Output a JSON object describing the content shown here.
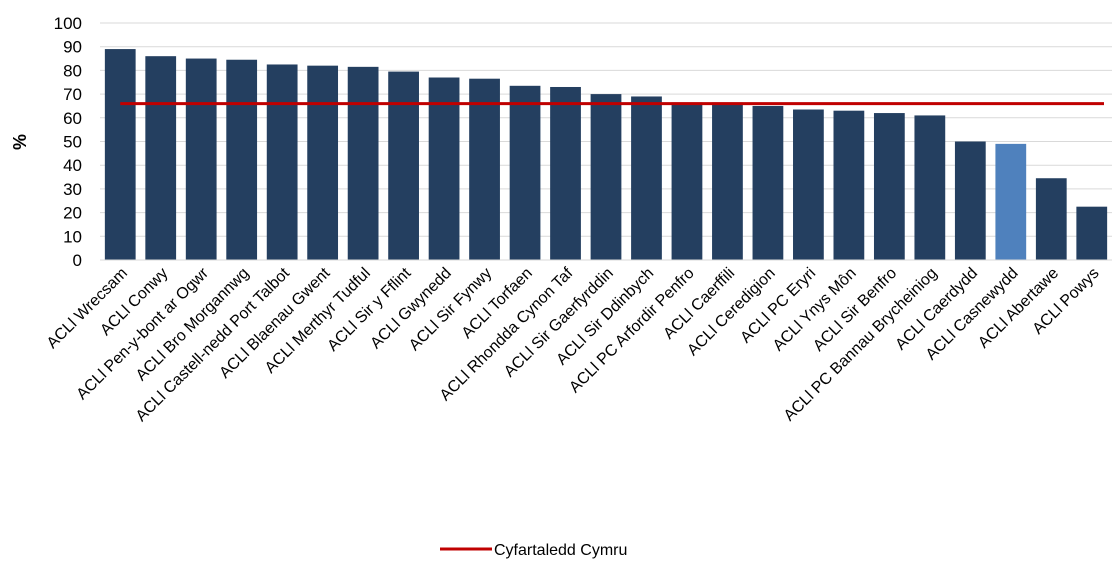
{
  "chart_data": {
    "type": "bar",
    "title": "",
    "xlabel": "",
    "ylabel": "%",
    "ylim": [
      0,
      100
    ],
    "yticks": [
      0,
      10,
      20,
      30,
      40,
      50,
      60,
      70,
      80,
      90,
      100
    ],
    "grid": true,
    "categories": [
      "ACLl Wrecsam",
      "ACLl Conwy",
      "ACLl Pen-y-bont ar Ogwr",
      "ACLl Bro Morgannwg",
      "ACLl Castell-nedd Port Talbot",
      "ACLl Blaenau Gwent",
      "ACLl Merthyr Tudful",
      "ACLl Sir y Fflint",
      "ACLl Gwynedd",
      "ACLl Sir Fynwy",
      "ACLl Torfaen",
      "ACLl Rhondda Cynon Taf",
      "ACLl Sir Gaerfyrddin",
      "ACLl Sir Ddinbych",
      "ACLl PC Arfordir Penfro",
      "ACLl Caerffili",
      "ACLl Ceredigion",
      "ACLl PC Eryri",
      "ACLl Ynys Môn",
      "ACLl Sir Benfro",
      "ACLl PC Bannau Brycheiniog",
      "ACLl Caerdydd",
      "ACLl Casnewydd",
      "ACLl Abertawe",
      "ACLl Powys"
    ],
    "series": [
      {
        "values": [
          89,
          86,
          85,
          84.5,
          82.5,
          82,
          81.5,
          79.5,
          77,
          76.5,
          73.5,
          73,
          70,
          69,
          66.5,
          66.5,
          65,
          63.5,
          63,
          62,
          61,
          50,
          49,
          34.5,
          22.5
        ]
      }
    ],
    "highlight_index": 22,
    "bar_color": "#243f60",
    "highlight_color": "#4f81bd",
    "reference_line": {
      "name": "Cyfartaledd Cymru",
      "value": 66,
      "color": "#c00000"
    },
    "legend_position": "bottom"
  }
}
